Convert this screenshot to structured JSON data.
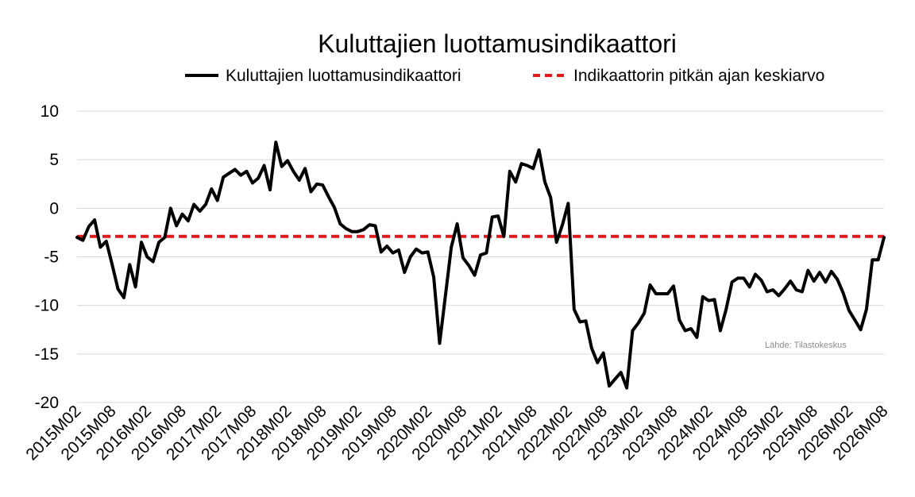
{
  "chart_data": {
    "type": "line",
    "title": "Kuluttajien luottamusindikaattori",
    "source": "Lähde: Tilastokeskus",
    "legend_position": "top",
    "grid": true,
    "ylim": [
      -20,
      10
    ],
    "yticks": [
      10,
      5,
      0,
      -5,
      -10,
      -15,
      -20
    ],
    "x_start": "2015M02",
    "x_tick_labels": [
      "2015M02",
      "2015M08",
      "2016M02",
      "2016M08",
      "2017M02",
      "2017M08",
      "2018M02",
      "2018M08",
      "2019M02",
      "2019M08",
      "2020M02",
      "2020M08",
      "2021M02",
      "2021M08",
      "2022M02",
      "2022M08",
      "2023M02",
      "2023M08",
      "2024M02",
      "2024M08",
      "2025M02",
      "2025M08",
      "2026M02",
      "2026M08"
    ],
    "x": [
      "2015M02",
      "2015M03",
      "2015M04",
      "2015M05",
      "2015M06",
      "2015M07",
      "2015M08",
      "2015M09",
      "2015M10",
      "2015M11",
      "2015M12",
      "2016M01",
      "2016M02",
      "2016M03",
      "2016M04",
      "2016M05",
      "2016M06",
      "2016M07",
      "2016M08",
      "2016M09",
      "2016M10",
      "2016M11",
      "2016M12",
      "2017M01",
      "2017M02",
      "2017M03",
      "2017M04",
      "2017M05",
      "2017M06",
      "2017M07",
      "2017M08",
      "2017M09",
      "2017M10",
      "2017M11",
      "2017M12",
      "2018M01",
      "2018M02",
      "2018M03",
      "2018M04",
      "2018M05",
      "2018M06",
      "2018M07",
      "2018M08",
      "2018M09",
      "2018M10",
      "2018M11",
      "2018M12",
      "2019M01",
      "2019M02",
      "2019M03",
      "2019M04",
      "2019M05",
      "2019M06",
      "2019M07",
      "2019M08",
      "2019M09",
      "2019M10",
      "2019M11",
      "2019M12",
      "2020M01",
      "2020M02",
      "2020M03",
      "2020M04",
      "2020M05",
      "2020M06",
      "2020M07",
      "2020M08",
      "2020M09",
      "2020M10",
      "2020M11",
      "2020M12",
      "2021M01",
      "2021M02",
      "2021M03",
      "2021M04",
      "2021M05",
      "2021M06",
      "2021M07",
      "2021M08",
      "2021M09",
      "2021M10",
      "2021M11",
      "2021M12",
      "2022M01",
      "2022M02",
      "2022M03",
      "2022M04",
      "2022M05",
      "2022M06",
      "2022M07",
      "2022M08",
      "2022M09",
      "2022M10",
      "2022M11",
      "2022M12",
      "2023M01",
      "2023M02",
      "2023M03",
      "2023M04",
      "2023M05",
      "2023M06",
      "2023M07",
      "2023M08",
      "2023M09",
      "2023M10",
      "2023M11",
      "2023M12",
      "2024M01",
      "2024M02",
      "2024M03",
      "2024M04",
      "2024M05",
      "2024M06",
      "2024M07",
      "2024M08",
      "2024M09",
      "2024M10",
      "2024M11",
      "2024M12",
      "2025M01",
      "2025M02",
      "2025M03",
      "2025M04",
      "2025M05",
      "2025M06",
      "2025M07",
      "2025M08",
      "2025M09",
      "2025M10",
      "2025M11",
      "2025M12",
      "2026M01",
      "2026M02",
      "2026M03",
      "2026M04",
      "2026M05",
      "2026M06",
      "2026M07",
      "2026M08"
    ],
    "series": [
      {
        "name": "Kuluttajien luottamusindikaattori",
        "color": "#000000",
        "style": "solid",
        "values": [
          -3.0,
          -3.3,
          -1.9,
          -1.2,
          -4.0,
          -3.4,
          -5.8,
          -8.3,
          -9.2,
          -5.8,
          -8.1,
          -3.5,
          -5.0,
          -5.5,
          -3.5,
          -3.0,
          0.0,
          -1.8,
          -0.6,
          -1.3,
          0.4,
          -0.3,
          0.4,
          2.0,
          0.8,
          3.2,
          3.6,
          4.0,
          3.4,
          3.8,
          2.6,
          3.1,
          4.4,
          1.9,
          6.8,
          4.3,
          4.9,
          3.8,
          2.9,
          4.1,
          1.7,
          2.5,
          2.4,
          1.2,
          0.1,
          -1.6,
          -2.1,
          -2.4,
          -2.4,
          -2.2,
          -1.7,
          -1.8,
          -4.5,
          -3.9,
          -4.6,
          -4.3,
          -6.6,
          -5.0,
          -4.2,
          -4.6,
          -4.5,
          -7.1,
          -13.9,
          -9.0,
          -4.0,
          -1.6,
          -5.1,
          -5.9,
          -6.9,
          -4.8,
          -4.6,
          -0.9,
          -0.8,
          -2.9,
          3.8,
          2.7,
          4.6,
          4.4,
          4.1,
          6.0,
          2.7,
          1.1,
          -3.5,
          -1.7,
          0.5,
          -10.4,
          -11.7,
          -11.6,
          -14.4,
          -15.9,
          -14.9,
          -18.3,
          -17.6,
          -16.9,
          -18.5,
          -12.6,
          -11.8,
          -10.8,
          -7.9,
          -8.8,
          -8.8,
          -8.8,
          -8.0,
          -11.5,
          -12.6,
          -12.4,
          -13.3,
          -9.1,
          -9.5,
          -9.4,
          -12.6,
          -10.4,
          -7.6,
          -7.2,
          -7.2,
          -8.1,
          -6.8,
          -7.4,
          -8.6,
          -8.4,
          -9.0,
          -8.3,
          -7.5,
          -8.4,
          -8.6,
          -6.4,
          -7.5,
          -6.6,
          -7.6,
          -6.5,
          -7.3,
          -8.7,
          -10.5,
          -11.5,
          -12.5,
          -10.4,
          -5.3,
          -5.3,
          -3.0
        ]
      },
      {
        "name": "Indikaattorin pitkän ajan keskiarvo",
        "color": "#e11b1b",
        "style": "dashed",
        "value": -2.9
      }
    ]
  }
}
